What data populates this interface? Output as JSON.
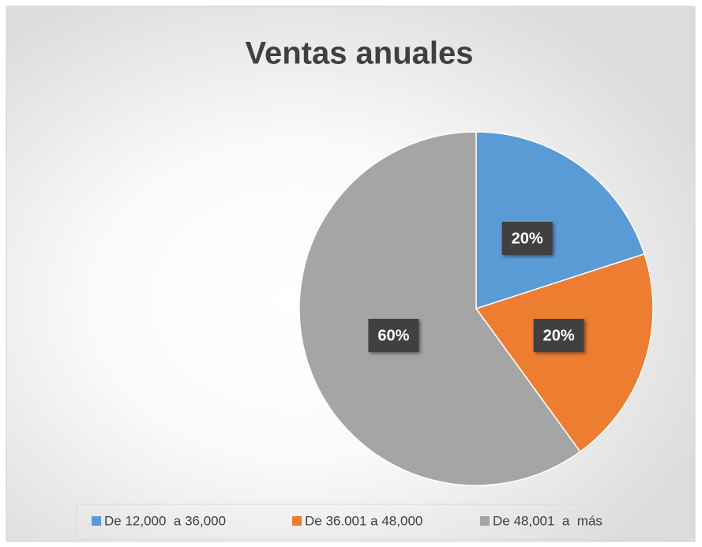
{
  "chart_data": {
    "type": "pie",
    "title": "Ventas anuales",
    "categories": [
      "De 12,000  a 36,000",
      "De 36.001 a 48,000",
      "De 48,001  a  más"
    ],
    "values": [
      20,
      20,
      60
    ],
    "value_labels": [
      "20%",
      "20%",
      "60%"
    ],
    "colors": [
      "#5b9bd5",
      "#ed7d31",
      "#a5a5a5"
    ],
    "legend": "bottom"
  }
}
